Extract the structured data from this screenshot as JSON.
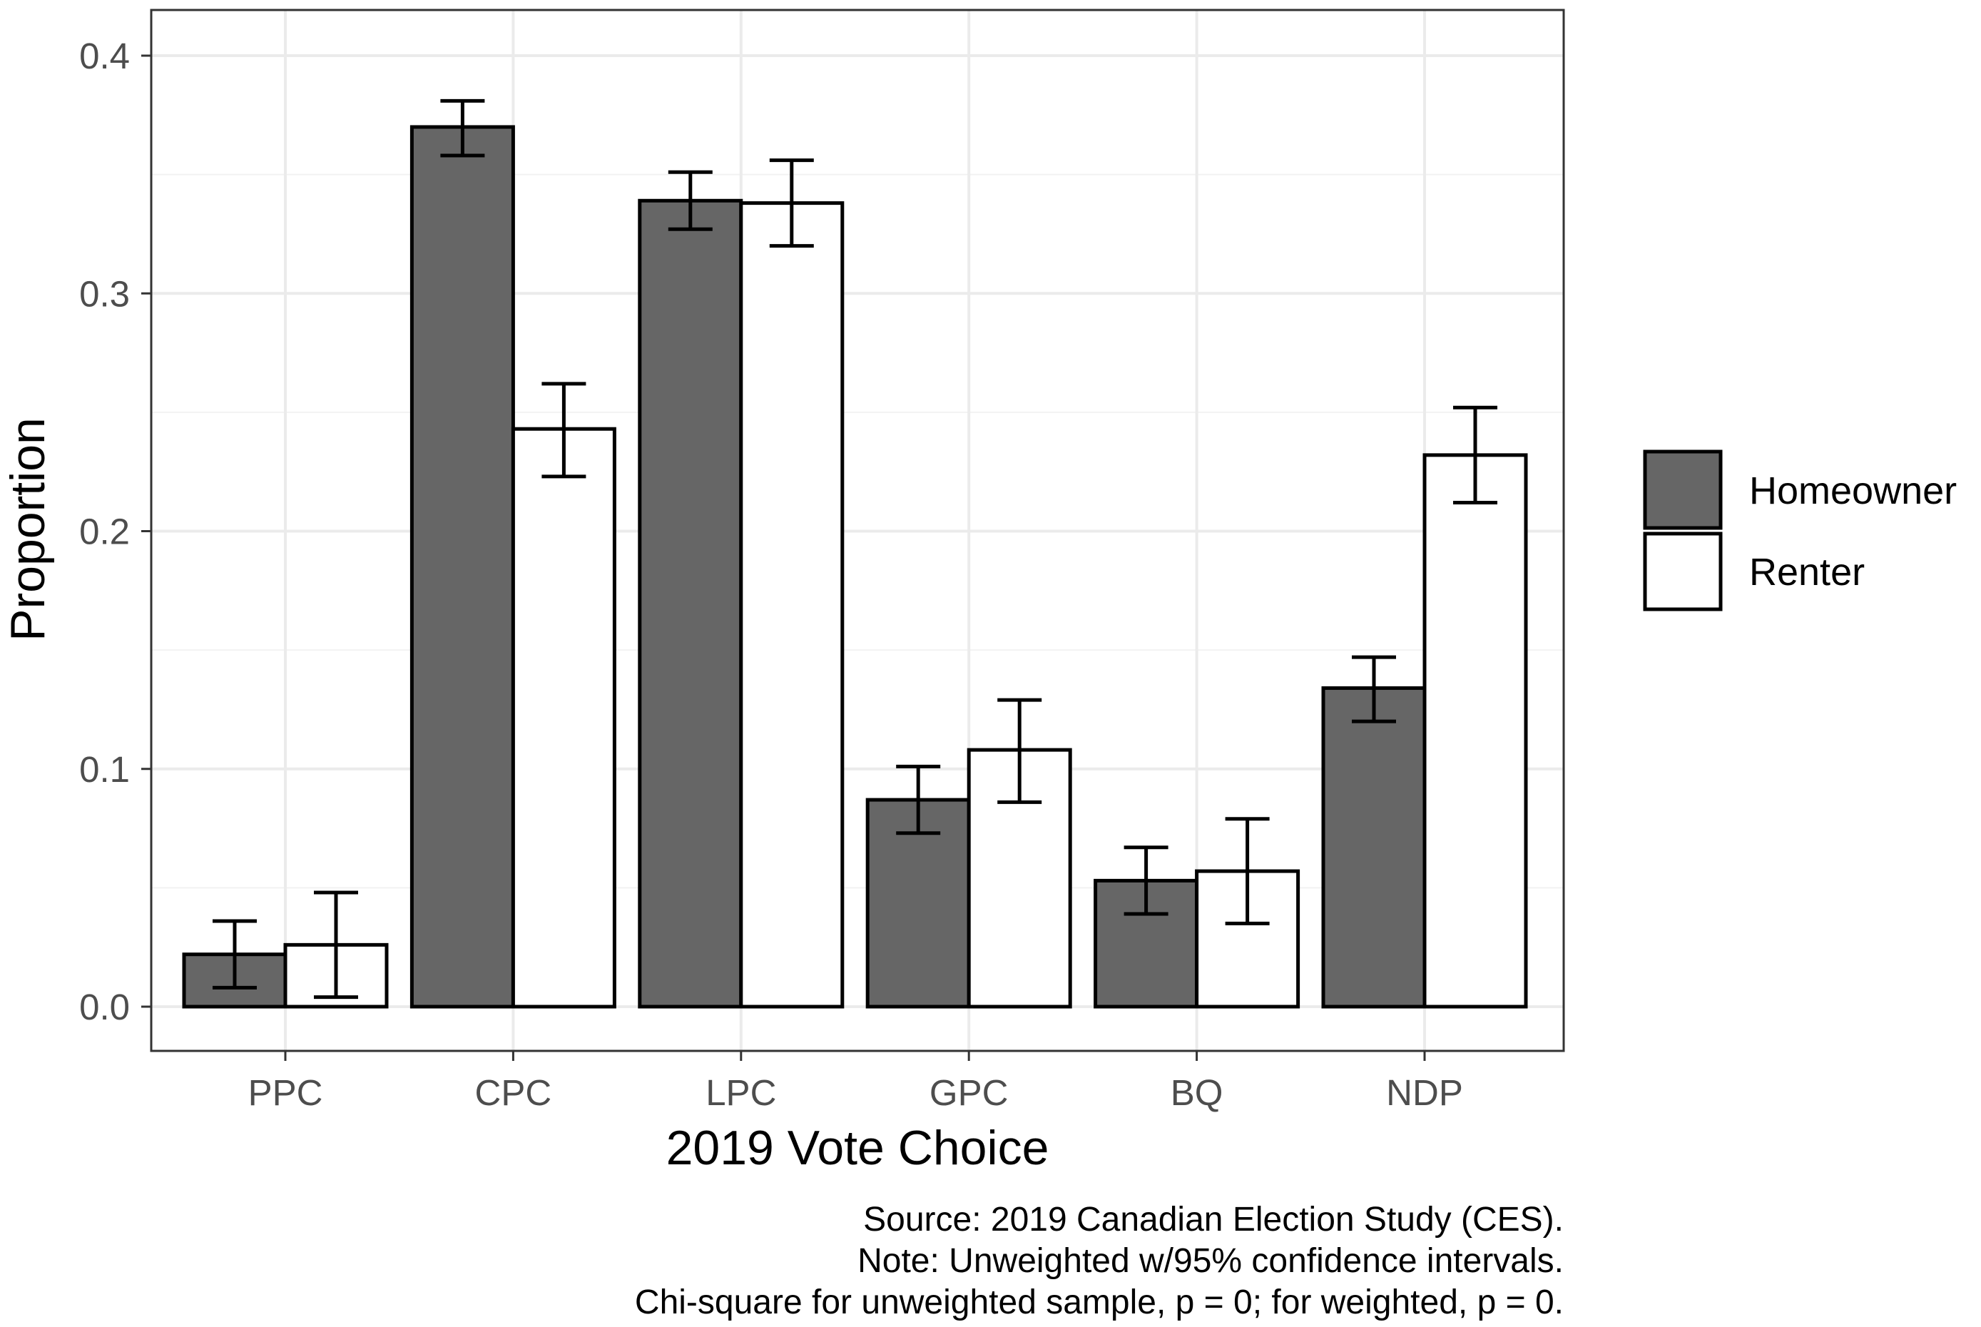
{
  "chart_data": {
    "type": "bar",
    "title": "",
    "xlabel": "2019 Vote Choice",
    "ylabel": "Proportion",
    "ylim": [
      -0.019,
      0.41
    ],
    "yticks": [
      0.0,
      0.1,
      0.2,
      0.3,
      0.4
    ],
    "ytick_labels": [
      "0.0",
      "0.1",
      "0.2",
      "0.3",
      "0.4"
    ],
    "grid": true,
    "categories": [
      "PPC",
      "CPC",
      "LPC",
      "GPC",
      "BQ",
      "NDP"
    ],
    "series": [
      {
        "name": "Homeowner",
        "color": "#666666",
        "values": [
          0.022,
          0.37,
          0.339,
          0.087,
          0.053,
          0.134
        ],
        "ci_low": [
          0.008,
          0.358,
          0.327,
          0.073,
          0.039,
          0.12
        ],
        "ci_high": [
          0.036,
          0.381,
          0.351,
          0.101,
          0.067,
          0.147
        ]
      },
      {
        "name": "Renter",
        "color": "#ffffff",
        "values": [
          0.026,
          0.243,
          0.338,
          0.108,
          0.057,
          0.232
        ],
        "ci_low": [
          0.004,
          0.223,
          0.32,
          0.086,
          0.035,
          0.212
        ],
        "ci_high": [
          0.048,
          0.262,
          0.356,
          0.129,
          0.079,
          0.252
        ]
      }
    ],
    "legend": {
      "position": "right",
      "entries": [
        "Homeowner",
        "Renter"
      ]
    },
    "caption": [
      "Source: 2019 Canadian Election Study (CES).",
      "Note: Unweighted w/95% confidence intervals.",
      "Chi-square for unweighted sample, p = 0; for weighted, p = 0."
    ]
  }
}
